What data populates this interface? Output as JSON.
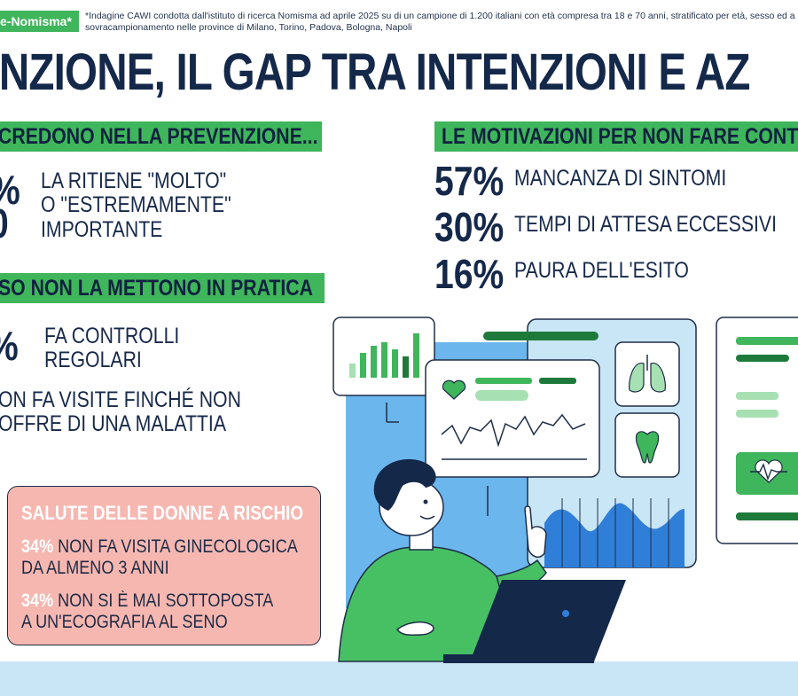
{
  "badge": "e-Nomisma*",
  "footnote": "*Indagine CAWI condotta dall'istituto di ricerca Nomisma ad aprile 2025 su di un campione di 1.200 italiani con età compresa tra 18 e 70 anni, stratificato per età, sesso ed a sovracampionamento nelle province di Milano, Torino, Padova, Bologna, Napoli",
  "title": "ENZIONE, IL GAP TRA INTENZIONI E AZ",
  "left_section1": {
    "heading": "CREDONO NELLA PREVENZIONE...",
    "pct_fragment_top": "%",
    "pct_fragment_bottom": "0",
    "line1": "LA RITIENE \"MOLTO\"",
    "line2": "O \"ESTREMAMENTE\"",
    "line3": "IMPORTANTE"
  },
  "left_section2": {
    "heading": "SO NON LA METTONO IN PRATICA",
    "pct_fragment": "%",
    "line1": "FA CONTROLLI",
    "line2": "REGOLARI",
    "line3": "ON FA VISITE FINCHÉ NON",
    "line4": "OFFRE DI UNA MALATTIA"
  },
  "motivations": {
    "heading": "LE MOTIVAZIONI PER NON FARE CONT",
    "items": [
      {
        "pct": "57%",
        "label": "MANCANZA DI SINTOMI"
      },
      {
        "pct": "30%",
        "label": "TEMPI DI ATTESA ECCESSIVI"
      },
      {
        "pct": "16%",
        "label": "PAURA DELL'ESITO"
      }
    ]
  },
  "women": {
    "title": "SALUTE DELLE DONNE A RISCHIO",
    "items": [
      {
        "pct": "34%",
        "line1": "NON FA VISITA GINECOLOGICA",
        "line2": "DA ALMENO 3 ANNI"
      },
      {
        "pct": "34%",
        "line1": "NON SI È MAI SOTTOPOSTA",
        "line2": "A UN'ECOGRAFIA AL SENO"
      }
    ]
  },
  "colors": {
    "green": "#3fb55c",
    "navy": "#14284a",
    "pink": "#f7b7b1",
    "lightblue": "#c9e6f6",
    "blue": "#5aa4ea"
  },
  "illustration": {
    "icons": [
      "bar-chart-icon",
      "heart-icon",
      "lungs-icon",
      "tooth-icon",
      "heart-pulse-icon"
    ]
  }
}
